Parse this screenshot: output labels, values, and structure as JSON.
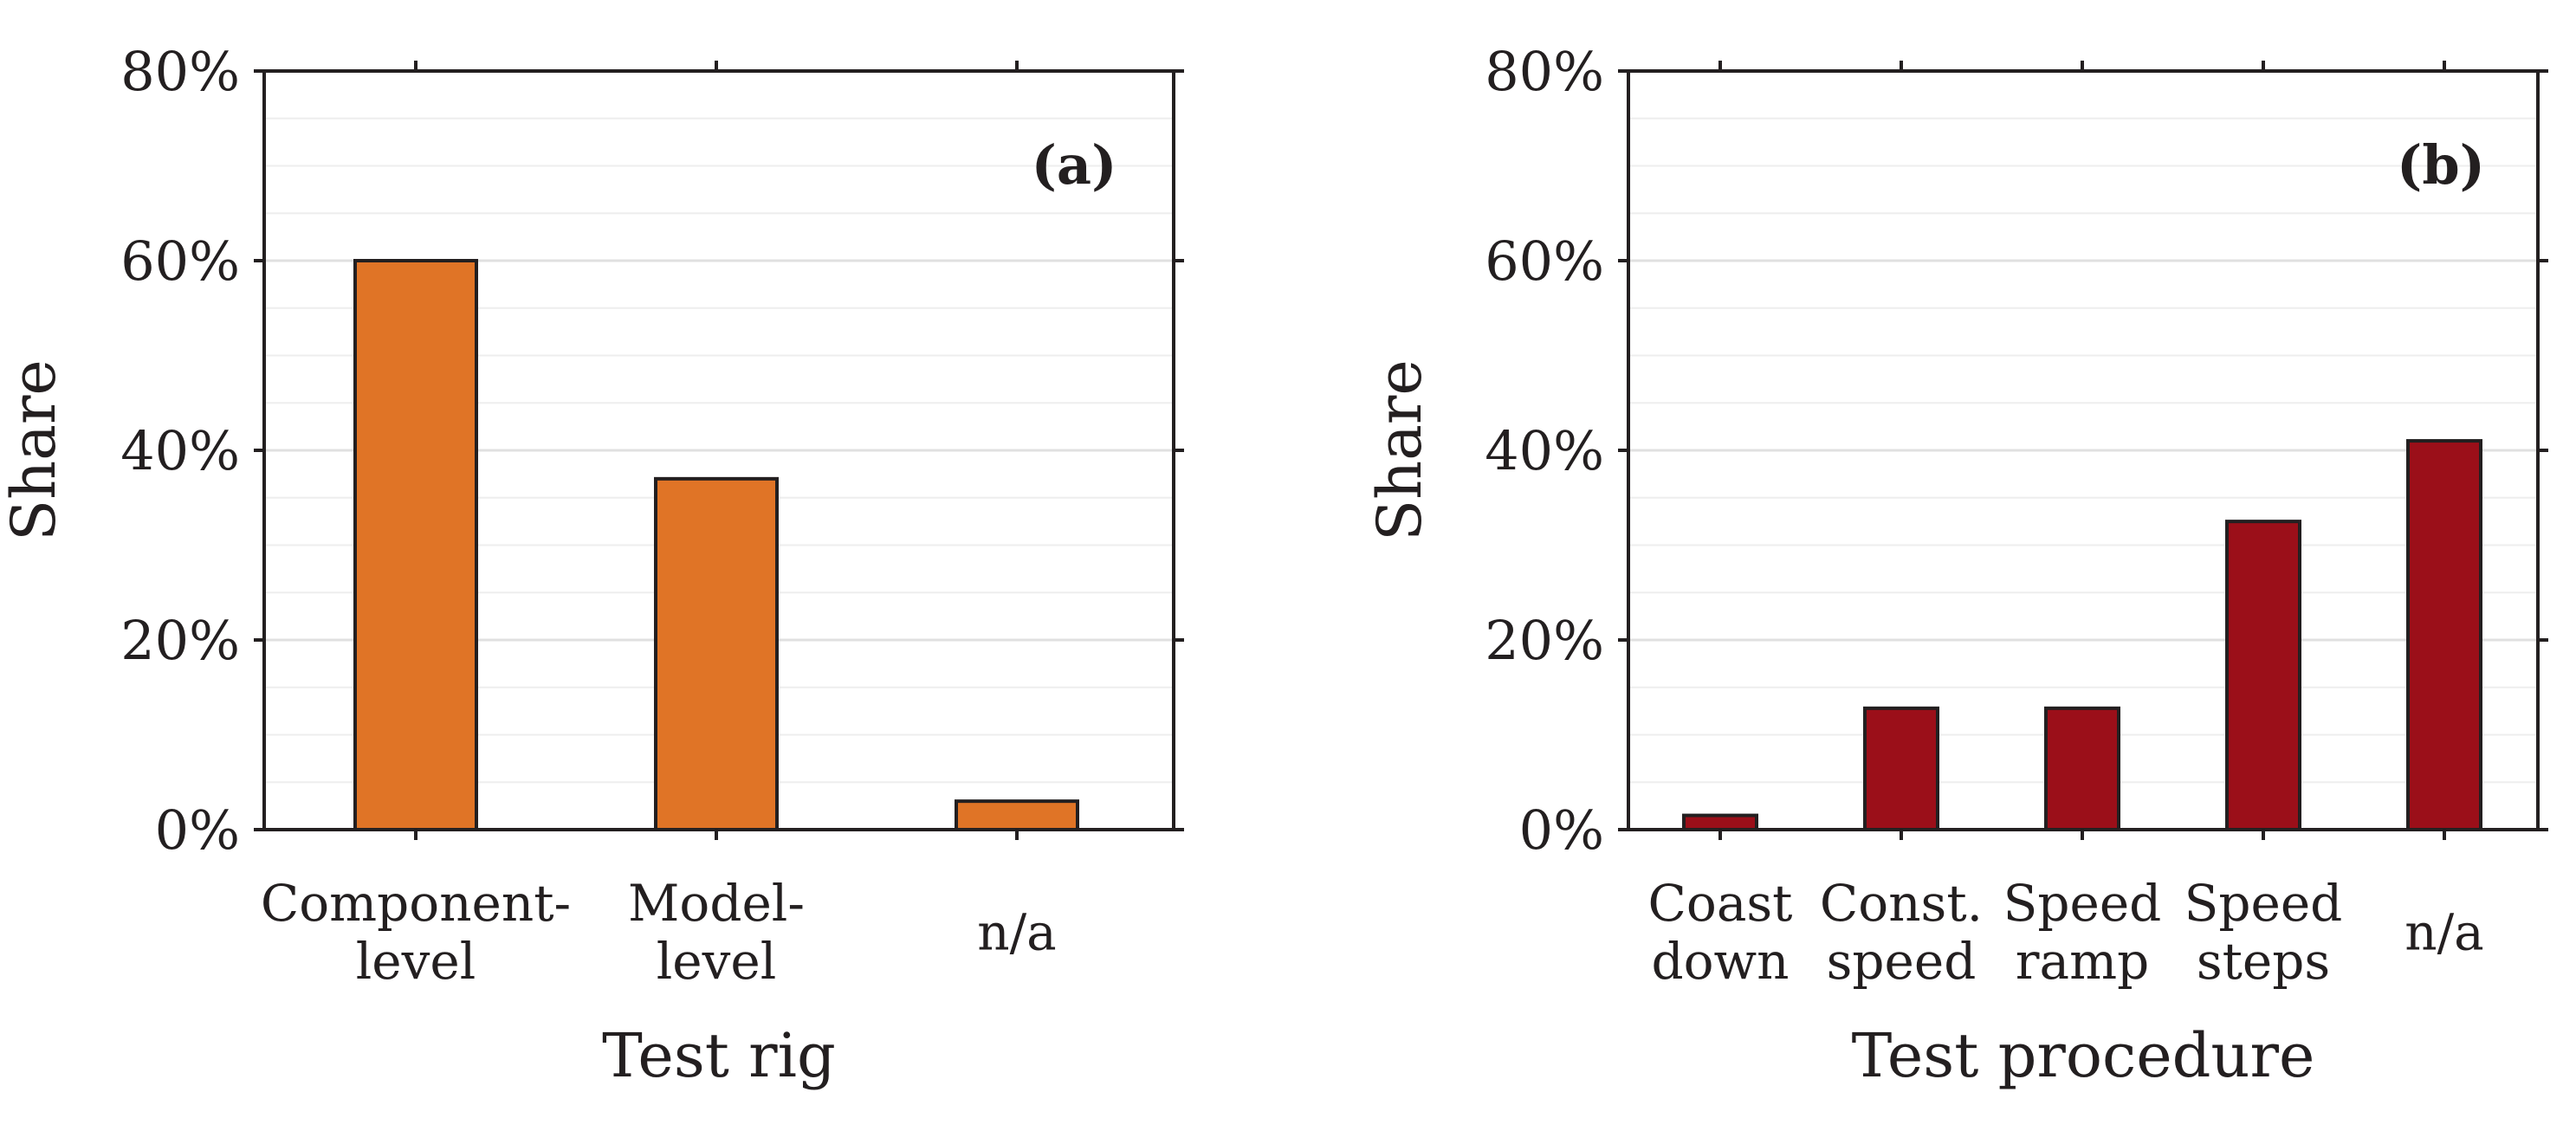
{
  "chart_data": [
    {
      "type": "bar",
      "panel": "(a)",
      "panel_letter": "a",
      "xlabel": "Test rig",
      "ylabel": "Share",
      "ylim": [
        0,
        80
      ],
      "y_unit": "%",
      "y_ticks": [
        {
          "value": 0,
          "label": "0%"
        },
        {
          "value": 20,
          "label": "20%"
        },
        {
          "value": 40,
          "label": "40%"
        },
        {
          "value": 60,
          "label": "60%"
        },
        {
          "value": 80,
          "label": "80%"
        }
      ],
      "minor_grid_step": 5,
      "grid": "minor-horizontal",
      "bar_color": "#e07426",
      "categories": [
        {
          "lines": [
            "Component-",
            "level"
          ]
        },
        {
          "lines": [
            "Model-",
            "level"
          ]
        },
        {
          "lines": [
            "n/a"
          ]
        }
      ],
      "values": [
        60,
        37,
        3
      ]
    },
    {
      "type": "bar",
      "panel": "(b)",
      "panel_letter": "b",
      "xlabel": "Test procedure",
      "ylabel": "Share",
      "ylim": [
        0,
        80
      ],
      "y_unit": "%",
      "y_ticks": [
        {
          "value": 0,
          "label": "0%"
        },
        {
          "value": 20,
          "label": "20%"
        },
        {
          "value": 40,
          "label": "40%"
        },
        {
          "value": 60,
          "label": "60%"
        },
        {
          "value": 80,
          "label": "80%"
        }
      ],
      "minor_grid_step": 5,
      "grid": "minor-horizontal",
      "bar_color": "#9b0f19",
      "categories": [
        {
          "lines": [
            "Coast",
            "down"
          ]
        },
        {
          "lines": [
            "Const.",
            "speed"
          ]
        },
        {
          "lines": [
            "Speed",
            "ramp"
          ]
        },
        {
          "lines": [
            "Speed",
            "steps"
          ]
        },
        {
          "lines": [
            "n/a"
          ]
        }
      ],
      "values": [
        1.5,
        12.8,
        12.8,
        32.5,
        41
      ]
    }
  ]
}
